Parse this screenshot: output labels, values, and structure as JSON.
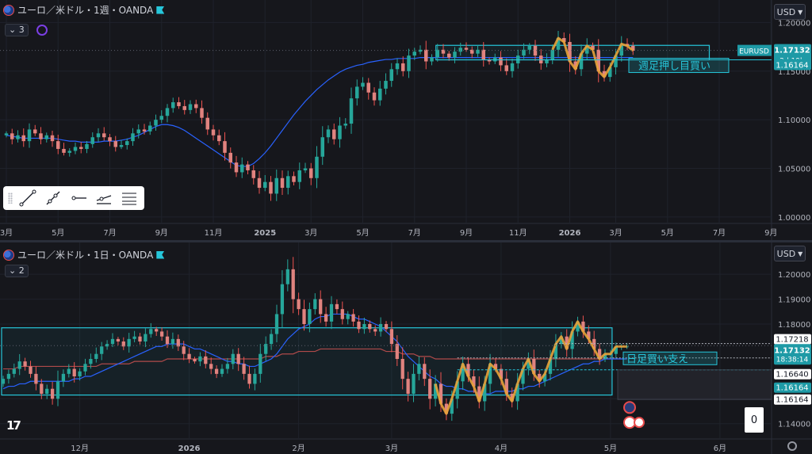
{
  "colors": {
    "background": "#16171c",
    "grid": "#1f222b",
    "bull": "#26a69a",
    "bear": "#ef5350",
    "bear_body": "#e0837f",
    "ma_blue": "#2962ff",
    "ma_red": "#b04a4a",
    "zone": "#26c6da",
    "wave": "#e8a33a",
    "label_teal": "#1e9aa6"
  },
  "top": {
    "title": "ユーロ／米ドル・1週・OANDA",
    "collapse_label": "3",
    "currency": "USD",
    "icons": [
      "euro-flag-icon",
      "broker-flag-icon",
      "indicator-icon",
      "chevron-down-icon"
    ],
    "chart_data": {
      "type": "candlestick",
      "timeframe": "1週",
      "symbol": "EURUSD",
      "y_ticks": [
        "1.20000",
        "1.15000",
        "1.10000",
        "1.05000",
        "1.00000"
      ],
      "y_tick_values": [
        1.2,
        1.15,
        1.1,
        1.05,
        1.0
      ],
      "ylim": [
        0.995,
        1.215
      ],
      "x_tick_labels": [
        "3月",
        "5月",
        "7月",
        "9月",
        "11月",
        "2025",
        "3月",
        "5月",
        "7月",
        "9月",
        "11月",
        "2026",
        "3月",
        "5月",
        "7月",
        "9月"
      ],
      "x_tick_index": [
        0,
        9,
        18,
        27,
        36,
        45,
        53,
        62,
        71,
        80,
        89,
        98,
        106,
        115,
        124,
        133
      ],
      "series_close": [
        1.086,
        1.08,
        1.084,
        1.078,
        1.09,
        1.086,
        1.08,
        1.084,
        1.078,
        1.07,
        1.066,
        1.068,
        1.072,
        1.07,
        1.075,
        1.082,
        1.086,
        1.082,
        1.078,
        1.072,
        1.074,
        1.078,
        1.086,
        1.09,
        1.088,
        1.094,
        1.1,
        1.104,
        1.112,
        1.118,
        1.114,
        1.11,
        1.116,
        1.112,
        1.102,
        1.09,
        1.084,
        1.078,
        1.066,
        1.056,
        1.046,
        1.054,
        1.048,
        1.04,
        1.03,
        1.036,
        1.024,
        1.04,
        1.03,
        1.042,
        1.036,
        1.048,
        1.05,
        1.04,
        1.062,
        1.082,
        1.09,
        1.08,
        1.094,
        1.096,
        1.122,
        1.134,
        1.138,
        1.128,
        1.12,
        1.132,
        1.14,
        1.152,
        1.158,
        1.15,
        1.166,
        1.17,
        1.172,
        1.16,
        1.164,
        1.172,
        1.168,
        1.164,
        1.17,
        1.174,
        1.172,
        1.168,
        1.172,
        1.162,
        1.16,
        1.164,
        1.156,
        1.15,
        1.158,
        1.166,
        1.172,
        1.176,
        1.166,
        1.158,
        1.162,
        1.172,
        1.184,
        1.18,
        1.16,
        1.152,
        1.168,
        1.176,
        1.172,
        1.15,
        1.144,
        1.154,
        1.166,
        1.178,
        1.176,
        1.171
      ],
      "ma_blue": [
        1.084,
        1.083,
        1.082,
        1.081,
        1.081,
        1.081,
        1.081,
        1.081,
        1.081,
        1.08,
        1.079,
        1.078,
        1.078,
        1.077,
        1.077,
        1.077,
        1.077,
        1.078,
        1.078,
        1.078,
        1.079,
        1.08,
        1.082,
        1.084,
        1.087,
        1.09,
        1.093,
        1.095,
        1.095,
        1.094,
        1.092,
        1.089,
        1.085,
        1.081,
        1.077,
        1.073,
        1.069,
        1.065,
        1.061,
        1.057,
        1.053,
        1.052,
        1.052,
        1.055,
        1.06,
        1.066,
        1.073,
        1.081,
        1.089,
        1.097,
        1.105,
        1.112,
        1.119,
        1.125,
        1.131,
        1.136,
        1.141,
        1.145,
        1.149,
        1.152,
        1.154,
        1.156,
        1.157,
        1.159,
        1.16,
        1.161,
        1.162,
        1.162,
        1.163,
        1.163,
        1.163,
        1.163,
        1.164,
        1.164,
        1.164,
        1.164,
        1.164,
        1.164,
        1.164,
        1.164,
        1.164,
        1.164,
        1.164,
        1.164,
        1.164,
        1.164,
        1.164,
        1.164,
        1.164,
        1.164,
        1.164,
        1.164,
        1.164,
        1.164,
        1.164,
        1.164,
        1.164,
        1.164,
        1.164,
        1.164,
        1.164,
        1.164,
        1.164,
        1.164,
        1.164,
        1.164,
        1.164,
        1.164,
        1.164,
        1.164
      ],
      "zone": {
        "start_index": 75,
        "end_index": 122,
        "high": 1.1765,
        "low": 1.1616
      },
      "wave_start_index": 95,
      "price_last": "1.17132",
      "price_last_value": 1.17132,
      "countdown": "2d 19h",
      "symbol_label": "EURUSD",
      "support_level": "1.16164",
      "support_value": 1.16164,
      "annotation": "週足押し目買い"
    }
  },
  "bottom": {
    "title": "ユーロ／米ドル・1日・OANDA",
    "collapse_label": "2",
    "currency": "USD",
    "icons": [
      "euro-flag-icon",
      "broker-flag-icon",
      "chevron-down-icon"
    ],
    "chart_data": {
      "type": "candlestick",
      "timeframe": "1日",
      "symbol": "EURUSD",
      "y_ticks": [
        "1.20000",
        "1.19000",
        "1.18000",
        "1.15000",
        "1.14000"
      ],
      "y_tick_values": [
        1.2,
        1.19,
        1.18,
        1.15,
        1.14
      ],
      "ylim": [
        1.1345,
        1.2115
      ],
      "x_tick_labels": [
        "12月",
        "2026",
        "2月",
        "3月",
        "4月",
        "5月",
        "6月"
      ],
      "x_tick_index": [
        14,
        34,
        54,
        71,
        91,
        111,
        131
      ],
      "series_close": [
        1.158,
        1.16,
        1.162,
        1.165,
        1.163,
        1.16,
        1.156,
        1.152,
        1.154,
        1.15,
        1.157,
        1.16,
        1.162,
        1.159,
        1.161,
        1.164,
        1.166,
        1.168,
        1.171,
        1.172,
        1.174,
        1.173,
        1.171,
        1.174,
        1.175,
        1.173,
        1.176,
        1.178,
        1.177,
        1.175,
        1.172,
        1.174,
        1.171,
        1.168,
        1.166,
        1.165,
        1.167,
        1.164,
        1.162,
        1.16,
        1.162,
        1.164,
        1.168,
        1.164,
        1.16,
        1.156,
        1.16,
        1.168,
        1.172,
        1.176,
        1.184,
        1.196,
        1.202,
        1.19,
        1.186,
        1.18,
        1.186,
        1.19,
        1.184,
        1.181,
        1.188,
        1.186,
        1.182,
        1.184,
        1.181,
        1.178,
        1.18,
        1.178,
        1.177,
        1.18,
        1.178,
        1.172,
        1.166,
        1.158,
        1.152,
        1.16,
        1.164,
        1.158,
        1.15,
        1.156,
        1.148,
        1.144,
        1.15,
        1.157,
        1.164,
        1.159,
        1.155,
        1.149,
        1.156,
        1.164,
        1.162,
        1.158,
        1.152,
        1.149,
        1.156,
        1.162,
        1.166,
        1.16,
        1.157,
        1.16,
        1.166,
        1.172,
        1.175,
        1.17,
        1.177,
        1.181,
        1.177,
        1.174,
        1.17,
        1.166,
        1.168,
        1.168,
        1.171,
        1.171,
        1.171
      ],
      "ma_blue": [
        1.154,
        1.155,
        1.155,
        1.156,
        1.156,
        1.157,
        1.157,
        1.157,
        1.157,
        1.157,
        1.157,
        1.157,
        1.157,
        1.158,
        1.158,
        1.159,
        1.159,
        1.16,
        1.161,
        1.162,
        1.163,
        1.164,
        1.165,
        1.166,
        1.167,
        1.168,
        1.169,
        1.17,
        1.171,
        1.171,
        1.172,
        1.172,
        1.172,
        1.172,
        1.171,
        1.17,
        1.17,
        1.169,
        1.168,
        1.167,
        1.166,
        1.165,
        1.165,
        1.164,
        1.164,
        1.163,
        1.163,
        1.164,
        1.165,
        1.166,
        1.168,
        1.171,
        1.174,
        1.176,
        1.178,
        1.179,
        1.18,
        1.182,
        1.183,
        1.183,
        1.184,
        1.184,
        1.184,
        1.184,
        1.183,
        1.182,
        1.182,
        1.181,
        1.18,
        1.179,
        1.177,
        1.175,
        1.173,
        1.17,
        1.167,
        1.165,
        1.163,
        1.161,
        1.159,
        1.158,
        1.156,
        1.155,
        1.155,
        1.154,
        1.154,
        1.153,
        1.153,
        1.152,
        1.152,
        1.152,
        1.153,
        1.153,
        1.153,
        1.153,
        1.154,
        1.154,
        1.155,
        1.155,
        1.156,
        1.157,
        1.158,
        1.159,
        1.16,
        1.161,
        1.162,
        1.163,
        1.164,
        1.164,
        1.165,
        1.165,
        1.166,
        1.166,
        1.166,
        1.166,
        1.166
      ],
      "ma_red": [
        1.162,
        1.162,
        1.162,
        1.163,
        1.163,
        1.163,
        1.163,
        1.163,
        1.163,
        1.163,
        1.163,
        1.163,
        1.163,
        1.163,
        1.163,
        1.163,
        1.163,
        1.163,
        1.164,
        1.164,
        1.164,
        1.164,
        1.164,
        1.164,
        1.165,
        1.165,
        1.165,
        1.165,
        1.165,
        1.165,
        1.166,
        1.166,
        1.166,
        1.166,
        1.166,
        1.166,
        1.166,
        1.166,
        1.166,
        1.166,
        1.166,
        1.166,
        1.166,
        1.166,
        1.166,
        1.166,
        1.166,
        1.166,
        1.167,
        1.167,
        1.167,
        1.168,
        1.168,
        1.168,
        1.169,
        1.169,
        1.169,
        1.169,
        1.17,
        1.17,
        1.17,
        1.17,
        1.17,
        1.17,
        1.17,
        1.17,
        1.17,
        1.17,
        1.17,
        1.17,
        1.169,
        1.169,
        1.169,
        1.168,
        1.168,
        1.168,
        1.167,
        1.167,
        1.167,
        1.166,
        1.166,
        1.166,
        1.166,
        1.166,
        1.166,
        1.166,
        1.166,
        1.166,
        1.166,
        1.166,
        1.166,
        1.166,
        1.166,
        1.166,
        1.166,
        1.166,
        1.166,
        1.166,
        1.166,
        1.166,
        1.166,
        1.166,
        1.166,
        1.166,
        1.166,
        1.166,
        1.166,
        1.166,
        1.166,
        1.166,
        1.166,
        1.166,
        1.166,
        1.166,
        1.166
      ],
      "zone": {
        "start_index": 0,
        "end_index": 111,
        "high": 1.1785,
        "low": 1.1515
      },
      "wave_start_index": 79,
      "price_high": "1.17218",
      "price_high_value": 1.17218,
      "price_last": "1.17132",
      "price_last_value": 1.17132,
      "countdown": "18:38:14",
      "price_support": "1.16640",
      "price_support_value": 1.1664,
      "support_level_a": "1.16164",
      "support_level_b": "1.16164",
      "support_value": 1.16164,
      "annotation": "日足買い支え",
      "zero_label": "0"
    }
  }
}
